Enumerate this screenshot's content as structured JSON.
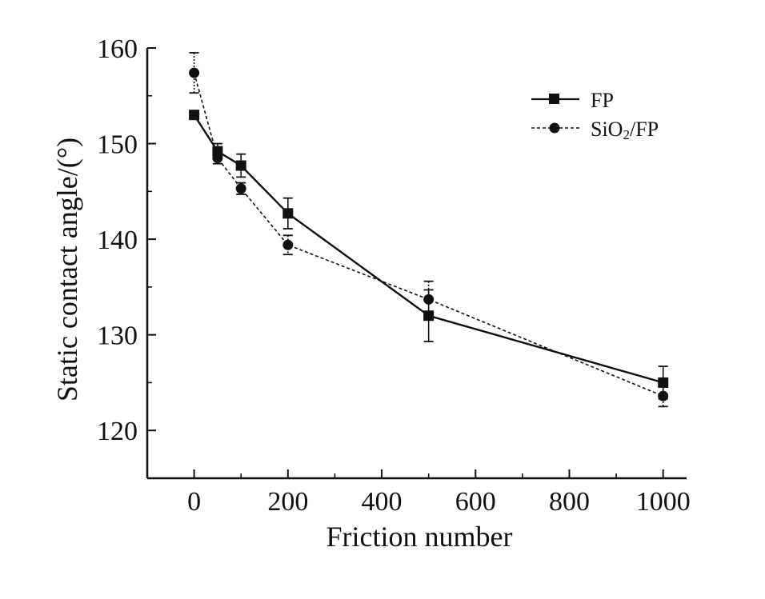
{
  "chart_data": {
    "type": "line",
    "title": "",
    "xlabel": "Friction number",
    "ylabel": "Static contact angle/(°)",
    "xlim": [
      -100,
      1050
    ],
    "ylim": [
      115,
      160
    ],
    "x_ticks": [
      0,
      200,
      400,
      600,
      800,
      1000
    ],
    "y_ticks": [
      120,
      130,
      140,
      150,
      160
    ],
    "x_tick_labels": [
      "0",
      "200",
      "400",
      "600",
      "800",
      "1000"
    ],
    "y_tick_labels": [
      "120",
      "130",
      "140",
      "150",
      "160"
    ],
    "grid": false,
    "legend_position": "top-right",
    "series": [
      {
        "name": "FP",
        "marker": "square",
        "line_style": "solid",
        "color": "#111111",
        "x": [
          0,
          50,
          100,
          200,
          500,
          1000
        ],
        "y": [
          153.0,
          149.2,
          147.7,
          142.7,
          132.0,
          125.0
        ],
        "error": [
          0.0,
          0.8,
          1.2,
          1.6,
          2.7,
          1.7
        ]
      },
      {
        "name": "SiO2/FP",
        "marker": "circle",
        "line_style": "dashed",
        "color": "#111111",
        "x": [
          0,
          50,
          100,
          200,
          500,
          1000
        ],
        "y": [
          157.4,
          148.5,
          145.3,
          139.4,
          133.7,
          123.6
        ],
        "error": [
          2.1,
          0.6,
          0.6,
          1.0,
          1.9,
          1.1
        ]
      }
    ]
  }
}
